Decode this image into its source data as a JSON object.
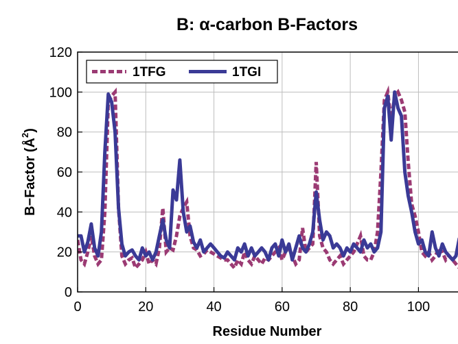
{
  "chart_data": {
    "type": "line",
    "title": "B: α-carbon B-Factors",
    "xlabel": "Residue Number",
    "ylabel_main": "B−Factor (Å",
    "ylabel_sup": "2",
    "ylabel_close": ")",
    "xlim": [
      0,
      112
    ],
    "ylim": [
      0,
      120
    ],
    "xticks": [
      0,
      20,
      40,
      60,
      80,
      100
    ],
    "yticks": [
      0,
      20,
      40,
      60,
      80,
      100,
      120
    ],
    "grid": true,
    "legend_position": "top-left",
    "series": [
      {
        "name": "1TFG",
        "color": "#9b3a73",
        "style": "dashed",
        "x": [
          0,
          1,
          2,
          3,
          4,
          5,
          6,
          7,
          8,
          9,
          10,
          11,
          12,
          13,
          14,
          15,
          16,
          17,
          18,
          19,
          20,
          21,
          22,
          23,
          24,
          25,
          26,
          27,
          28,
          29,
          30,
          31,
          32,
          33,
          34,
          35,
          36,
          37,
          38,
          39,
          40,
          41,
          42,
          43,
          44,
          45,
          46,
          47,
          48,
          49,
          50,
          51,
          52,
          53,
          54,
          55,
          56,
          57,
          58,
          59,
          60,
          61,
          62,
          63,
          64,
          65,
          66,
          67,
          68,
          69,
          70,
          71,
          72,
          73,
          74,
          75,
          76,
          77,
          78,
          79,
          80,
          81,
          82,
          83,
          84,
          85,
          86,
          87,
          88,
          89,
          90,
          91,
          92,
          93,
          94,
          95,
          96,
          97,
          98,
          99,
          100,
          101,
          102,
          103,
          104,
          105,
          106,
          107,
          108,
          109,
          110,
          111,
          112
        ],
        "values": [
          26,
          16,
          14,
          20,
          28,
          18,
          14,
          16,
          40,
          95,
          98,
          100,
          42,
          18,
          14,
          16,
          17,
          12,
          14,
          16,
          20,
          14,
          16,
          14,
          22,
          42,
          20,
          22,
          21,
          28,
          38,
          42,
          45,
          28,
          22,
          21,
          18,
          19,
          21,
          20,
          19,
          18,
          17,
          16,
          16,
          14,
          12,
          16,
          14,
          20,
          16,
          14,
          18,
          16,
          14,
          17,
          16,
          18,
          20,
          22,
          16,
          20,
          22,
          18,
          14,
          16,
          32,
          20,
          22,
          24,
          65,
          28,
          22,
          20,
          16,
          14,
          16,
          18,
          14,
          16,
          18,
          20,
          24,
          28,
          18,
          16,
          16,
          20,
          30,
          60,
          96,
          100,
          85,
          98,
          100,
          96,
          90,
          65,
          44,
          38,
          30,
          20,
          18,
          20,
          16,
          18,
          22,
          20,
          16,
          18,
          16,
          14,
          12
        ]
      },
      {
        "name": "1TGI",
        "color": "#3a3a96",
        "style": "solid",
        "x": [
          0,
          1,
          2,
          3,
          4,
          5,
          6,
          7,
          8,
          9,
          10,
          11,
          12,
          13,
          14,
          15,
          16,
          17,
          18,
          19,
          20,
          21,
          22,
          23,
          24,
          25,
          26,
          27,
          28,
          29,
          30,
          31,
          32,
          33,
          34,
          35,
          36,
          37,
          38,
          39,
          40,
          41,
          42,
          43,
          44,
          45,
          46,
          47,
          48,
          49,
          50,
          51,
          52,
          53,
          54,
          55,
          56,
          57,
          58,
          59,
          60,
          61,
          62,
          63,
          64,
          65,
          66,
          67,
          68,
          69,
          70,
          71,
          72,
          73,
          74,
          75,
          76,
          77,
          78,
          79,
          80,
          81,
          82,
          83,
          84,
          85,
          86,
          87,
          88,
          89,
          90,
          91,
          92,
          93,
          94,
          95,
          96,
          97,
          98,
          99,
          100,
          101,
          102,
          103,
          104,
          105,
          106,
          107,
          108,
          109,
          110,
          111,
          112
        ],
        "values": [
          28,
          28,
          20,
          25,
          34,
          22,
          18,
          30,
          70,
          99,
          95,
          80,
          42,
          24,
          18,
          20,
          21,
          18,
          16,
          22,
          18,
          20,
          16,
          20,
          28,
          36,
          26,
          22,
          51,
          46,
          66,
          40,
          30,
          33,
          25,
          22,
          26,
          20,
          22,
          24,
          22,
          20,
          18,
          17,
          20,
          18,
          16,
          22,
          20,
          24,
          18,
          22,
          18,
          20,
          22,
          20,
          16,
          22,
          24,
          18,
          26,
          20,
          24,
          16,
          22,
          28,
          22,
          20,
          24,
          30,
          50,
          36,
          26,
          30,
          28,
          22,
          24,
          22,
          18,
          22,
          20,
          24,
          22,
          20,
          26,
          22,
          24,
          20,
          22,
          30,
          92,
          98,
          76,
          100,
          92,
          88,
          60,
          48,
          40,
          30,
          24,
          26,
          20,
          18,
          30,
          22,
          18,
          24,
          20,
          18,
          16,
          18,
          27
        ]
      }
    ]
  }
}
